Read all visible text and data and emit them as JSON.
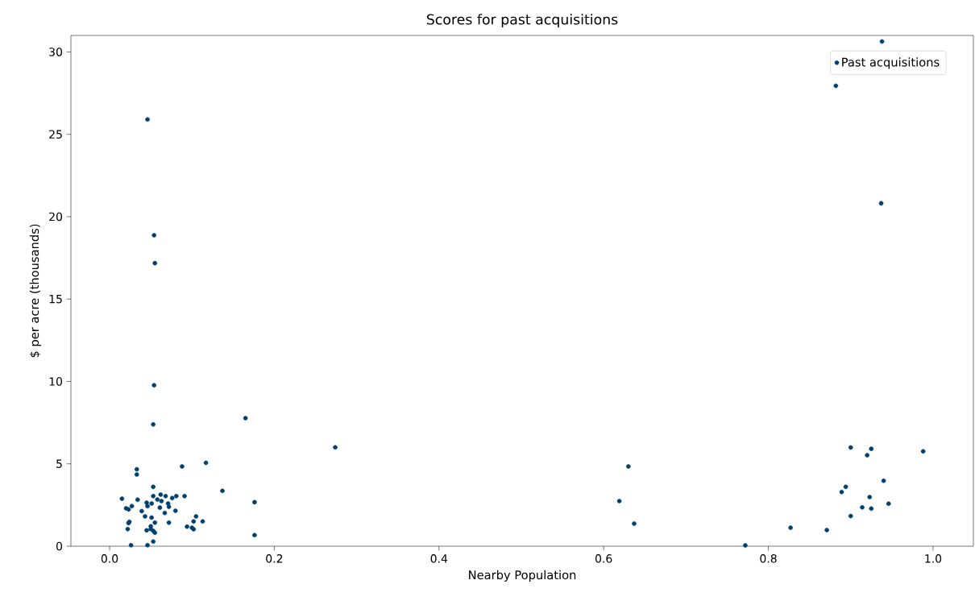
{
  "chart_data": {
    "type": "scatter",
    "title": "Scores for past acquisitions",
    "xlabel": "Nearby Population",
    "ylabel": "$ per acre (thousands)",
    "xlim": [
      -0.047,
      1.049
    ],
    "ylim": [
      0,
      31
    ],
    "xticks": [
      {
        "value": 0,
        "label": "0.0"
      },
      0.2,
      0.4,
      0.6,
      0.8,
      {
        "value": 1,
        "label": "1.0"
      }
    ],
    "yticks": [
      0,
      5,
      10,
      15,
      20,
      25,
      30
    ],
    "legend": "top right",
    "marker": "circle",
    "grid": false,
    "series": [
      {
        "name": "Past acquisitions",
        "color": "#00406e",
        "x": [
          0.63,
          0.619,
          0.637,
          0.772,
          0.827,
          0.871,
          0.9,
          0.925,
          0.92,
          0.988,
          0.94,
          0.894,
          0.889,
          0.923,
          0.946,
          0.914,
          0.925,
          0.9,
          0.882,
          0.938,
          0.937,
          0.046,
          0.054,
          0.055,
          0.054,
          0.053,
          0.165,
          0.274,
          0.033,
          0.033,
          0.088,
          0.117,
          0.137,
          0.176,
          0.176,
          0.053,
          0.015,
          0.034,
          0.053,
          0.062,
          0.068,
          0.076,
          0.081,
          0.091,
          0.045,
          0.046,
          0.051,
          0.058,
          0.063,
          0.071,
          0.072,
          0.061,
          0.067,
          0.02,
          0.023,
          0.027,
          0.039,
          0.043,
          0.051,
          0.08,
          0.105,
          0.024,
          0.023,
          0.022,
          0.055,
          0.072,
          0.094,
          0.102,
          0.113,
          0.1,
          0.102,
          0.045,
          0.05,
          0.053,
          0.055,
          0.05,
          0.053,
          0.026,
          0.046
        ],
        "values": [
          4.84,
          2.74,
          1.37,
          0.05,
          1.12,
          0.98,
          5.99,
          5.91,
          5.52,
          5.76,
          3.97,
          3.6,
          3.29,
          2.98,
          2.58,
          2.36,
          2.28,
          1.83,
          27.94,
          30.63,
          20.81,
          25.9,
          18.87,
          17.18,
          9.77,
          7.39,
          7.77,
          6.0,
          4.67,
          4.35,
          4.84,
          5.06,
          3.36,
          2.67,
          0.67,
          3.6,
          2.88,
          2.82,
          3.04,
          3.13,
          3.04,
          2.92,
          3.04,
          3.04,
          2.64,
          2.43,
          2.59,
          2.83,
          2.74,
          2.59,
          2.39,
          2.34,
          2.02,
          2.3,
          2.23,
          2.43,
          2.13,
          1.81,
          1.74,
          2.15,
          1.81,
          1.48,
          1.4,
          1.04,
          1.43,
          1.43,
          1.19,
          1.5,
          1.5,
          1.12,
          1.03,
          0.96,
          1.04,
          0.93,
          0.82,
          1.21,
          0.28,
          0.06,
          0.06
        ]
      }
    ]
  }
}
